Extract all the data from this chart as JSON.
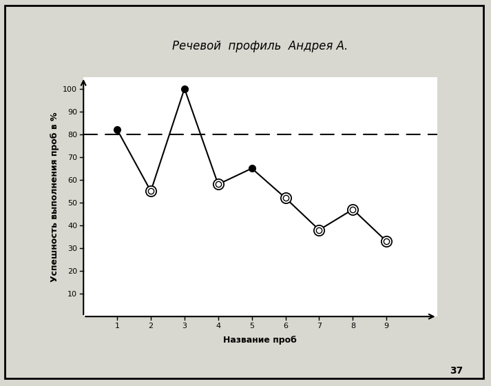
{
  "title": "Речевой  профиль  Андрея А.",
  "xlabel": "Название проб",
  "ylabel": "Успешность выполнения проб в %",
  "x": [
    1,
    2,
    3,
    4,
    5,
    6,
    7,
    8,
    9
  ],
  "y": [
    82,
    55,
    100,
    58,
    65,
    52,
    38,
    47,
    33
  ],
  "marker_types": [
    "filled",
    "open",
    "filled",
    "open",
    "filled",
    "open",
    "open",
    "open",
    "open"
  ],
  "dashed_line_y": 80,
  "xlim": [
    0,
    10.5
  ],
  "ylim": [
    0,
    105
  ],
  "yticks": [
    10,
    20,
    30,
    40,
    50,
    60,
    70,
    80,
    90,
    100
  ],
  "xticks": [
    1,
    2,
    3,
    4,
    5,
    6,
    7,
    8,
    9
  ],
  "line_color": "#000000",
  "dashed_color": "#000000",
  "page_bg_color": "#d8d8d0",
  "plot_bg_color": "#ffffff",
  "title_fontsize": 12,
  "label_fontsize": 9,
  "tick_fontsize": 8,
  "page_number": "37",
  "border_color": "#000000"
}
